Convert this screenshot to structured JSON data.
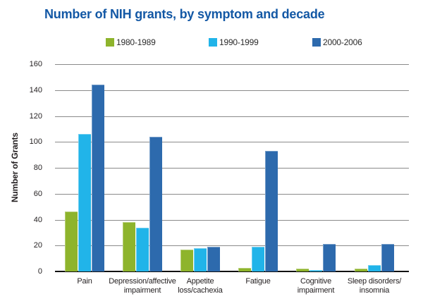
{
  "title": "Number of NIH grants, by symptom and decade",
  "y_axis": {
    "label": "Number of Grants",
    "ticks": [
      0,
      20,
      40,
      60,
      80,
      100,
      120,
      140,
      160
    ],
    "max": 160
  },
  "legend": {
    "items": [
      {
        "label": "1980-1989",
        "color": "#8eb42c"
      },
      {
        "label": "1990-1999",
        "color": "#21b4e9"
      },
      {
        "label": "2000-2006",
        "color": "#2d6aad"
      }
    ]
  },
  "colors": {
    "title": "#1358a5",
    "gridline": "#8a8a8a",
    "baseline": "#111111",
    "axis_text": "#231f20",
    "series": [
      "#8eb42c",
      "#21b4e9",
      "#2d6aad"
    ]
  },
  "chart_data": {
    "type": "bar",
    "title": "Number of NIH grants, by symptom and decade",
    "categories": [
      "Pain",
      "Depression/affective impairment",
      "Appetite loss/cachexia",
      "Fatigue",
      "Cognitive impairment",
      "Sleep disorders/insomnia"
    ],
    "category_label_lines": [
      [
        "Pain"
      ],
      [
        "Depression/affective",
        "impairment"
      ],
      [
        "Appetite",
        "loss/cachexia"
      ],
      [
        "Fatigue"
      ],
      [
        "Cognitive",
        "impairment"
      ],
      [
        "Sleep disorders/",
        "insomnia"
      ]
    ],
    "series": [
      {
        "name": "1980-1989",
        "values": [
          46,
          38,
          17,
          3,
          2,
          2
        ]
      },
      {
        "name": "1990-1999",
        "values": [
          106,
          34,
          18,
          19,
          1,
          5
        ]
      },
      {
        "name": "2000-2006",
        "values": [
          144,
          104,
          19,
          93,
          21,
          21
        ]
      }
    ],
    "xlabel": "",
    "ylabel": "Number of Grants",
    "ylim": [
      0,
      160
    ],
    "grid": true,
    "legend_position": "top"
  }
}
